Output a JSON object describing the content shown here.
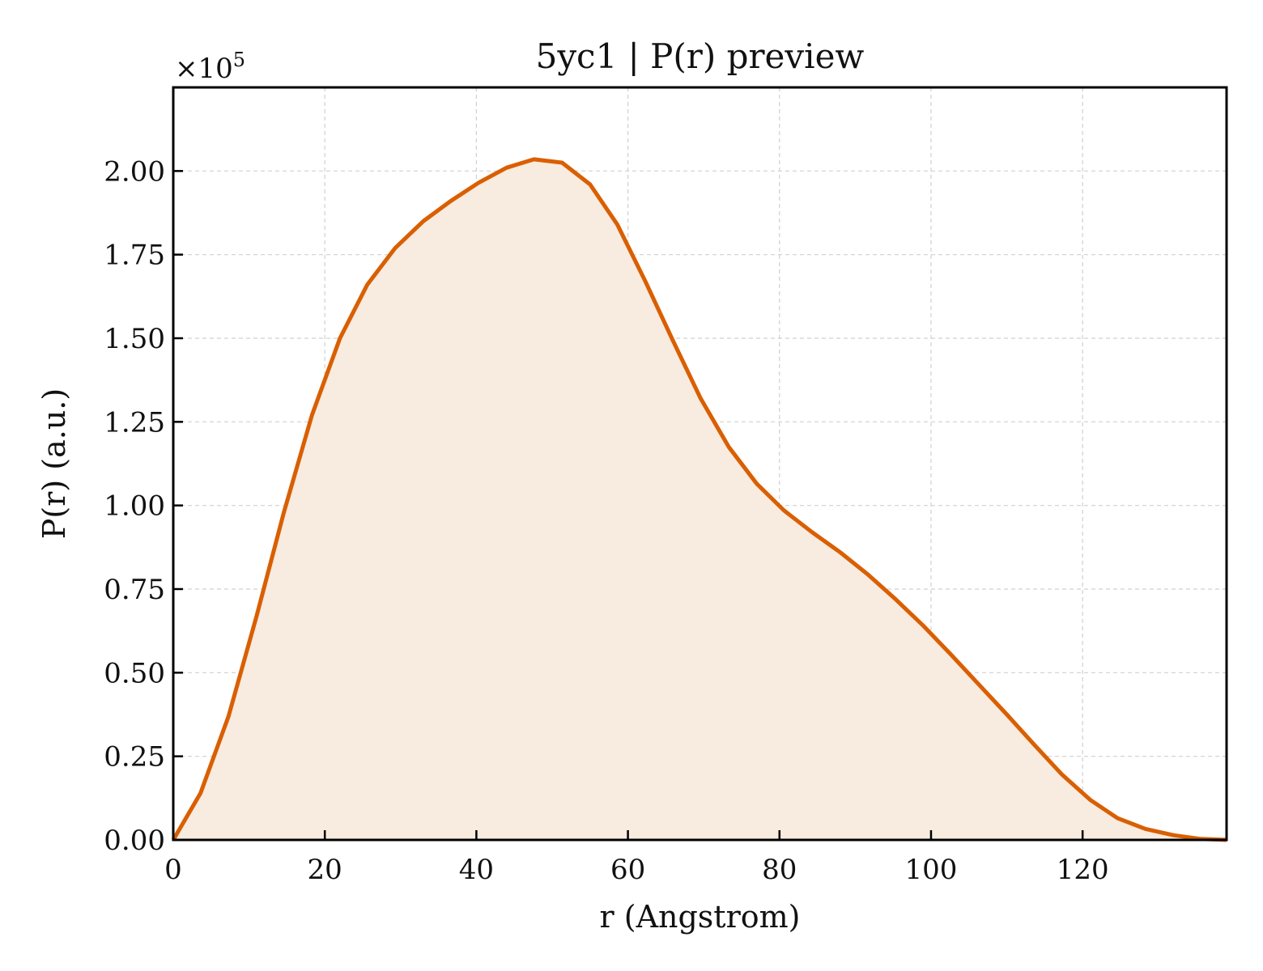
{
  "chart_data": {
    "type": "area",
    "title": "5yc1 | P(r) preview",
    "xlabel": "r (Angstrom)",
    "ylabel": "P(r) (a.u.)",
    "y_multiplier_label": "×10",
    "y_multiplier_exponent": "5",
    "xlim": [
      0,
      139
    ],
    "ylim": [
      0,
      2.25
    ],
    "y_scale_factor": 100000,
    "xticks": [
      0,
      20,
      40,
      60,
      80,
      100,
      120
    ],
    "xtick_labels": [
      "0",
      "20",
      "40",
      "60",
      "80",
      "100",
      "120"
    ],
    "yticks": [
      0,
      0.25,
      0.5,
      0.75,
      1.0,
      1.25,
      1.5,
      1.75,
      2.0
    ],
    "ytick_labels": [
      "0.00",
      "0.25",
      "0.50",
      "0.75",
      "1.00",
      "1.25",
      "1.50",
      "1.75",
      "2.00"
    ],
    "grid": true,
    "line_color": "#d95f02",
    "fill_color": "#f8ebe0",
    "series": [
      {
        "x": [
          0,
          3.6,
          7.3,
          11,
          14.6,
          18.3,
          22,
          25.6,
          29.3,
          33,
          36.6,
          40.3,
          44,
          47.6,
          51.3,
          55,
          58.6,
          62.3,
          66,
          69.6,
          73.3,
          77,
          80.6,
          84.3,
          88,
          91.6,
          95.3,
          99,
          102.6,
          106.3,
          110,
          113.6,
          117.3,
          121,
          124.6,
          128.3,
          132,
          135.6,
          139
        ],
        "y": [
          0.0,
          0.14,
          0.37,
          0.67,
          0.98,
          1.27,
          1.5,
          1.66,
          1.77,
          1.85,
          1.91,
          1.965,
          2.01,
          2.035,
          2.025,
          1.96,
          1.84,
          1.67,
          1.49,
          1.32,
          1.175,
          1.065,
          0.985,
          0.92,
          0.86,
          0.795,
          0.72,
          0.64,
          0.555,
          0.465,
          0.375,
          0.285,
          0.195,
          0.12,
          0.065,
          0.033,
          0.014,
          0.003,
          0.0
        ]
      }
    ]
  }
}
